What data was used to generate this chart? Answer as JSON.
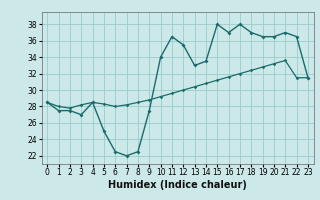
{
  "xlabel": "Humidex (Indice chaleur)",
  "background_color": "#cce8e8",
  "grid_color": "#99cccc",
  "line_color": "#1a6b6b",
  "x_values": [
    0,
    1,
    2,
    3,
    4,
    5,
    6,
    7,
    8,
    9,
    10,
    11,
    12,
    13,
    14,
    15,
    16,
    17,
    18,
    19,
    20,
    21,
    22,
    23
  ],
  "y_curve1": [
    28.5,
    27.5,
    27.5,
    27.0,
    28.5,
    25.0,
    22.5,
    22.0,
    22.5,
    27.5,
    34.0,
    36.5,
    35.5,
    33.0,
    33.5,
    38.0,
    37.0,
    38.0,
    37.0,
    36.5,
    36.5,
    37.0,
    36.5,
    31.5
  ],
  "y_line": [
    28.5,
    28.0,
    27.8,
    28.2,
    28.5,
    28.3,
    28.0,
    28.2,
    28.5,
    28.8,
    29.2,
    29.6,
    30.0,
    30.4,
    30.8,
    31.2,
    31.6,
    32.0,
    32.4,
    32.8,
    33.2,
    33.6,
    31.5,
    31.5
  ],
  "xlim": [
    -0.5,
    23.5
  ],
  "ylim": [
    21.0,
    39.5
  ],
  "yticks": [
    22,
    24,
    26,
    28,
    30,
    32,
    34,
    36,
    38
  ],
  "xticks": [
    0,
    1,
    2,
    3,
    4,
    5,
    6,
    7,
    8,
    9,
    10,
    11,
    12,
    13,
    14,
    15,
    16,
    17,
    18,
    19,
    20,
    21,
    22,
    23
  ],
  "tick_fontsize": 5.5,
  "xlabel_fontsize": 7.0
}
